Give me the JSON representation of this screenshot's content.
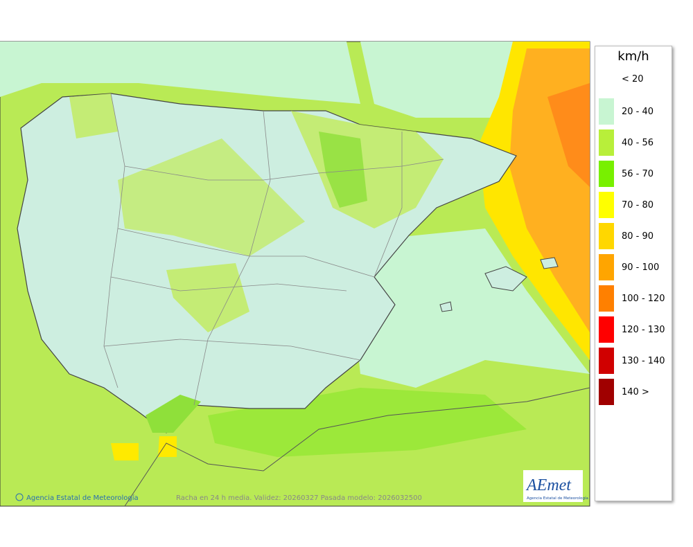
{
  "legend": {
    "title": "km/h",
    "items": [
      {
        "label": "< 20"
      },
      {
        "label": "20 - 40",
        "color": "#c8f5d2"
      },
      {
        "label": "40 - 56",
        "color": "#b8ef3a"
      },
      {
        "label": "56 - 70",
        "color": "#78f000"
      },
      {
        "label": "70 - 80",
        "color": "#ffff00"
      },
      {
        "label": "80 - 90",
        "color": "#ffd700"
      },
      {
        "label": "90 - 100",
        "color": "#ffa500"
      },
      {
        "label": "100 - 120",
        "color": "#ff8000"
      },
      {
        "label": "120 - 130",
        "color": "#ff0000"
      },
      {
        "label": "130 - 140",
        "color": "#d00000"
      },
      {
        "label": "140 >",
        "color": "#a00000"
      }
    ]
  },
  "footer": {
    "credit": "Agencia Estatal de Meteorología",
    "caption": "Racha en 24 h media. Validez: 20260327 Pasada modelo: 2026032500"
  },
  "logo": {
    "name": "AEmet",
    "subtitle": "Agencia Estatal de Meteorología"
  }
}
